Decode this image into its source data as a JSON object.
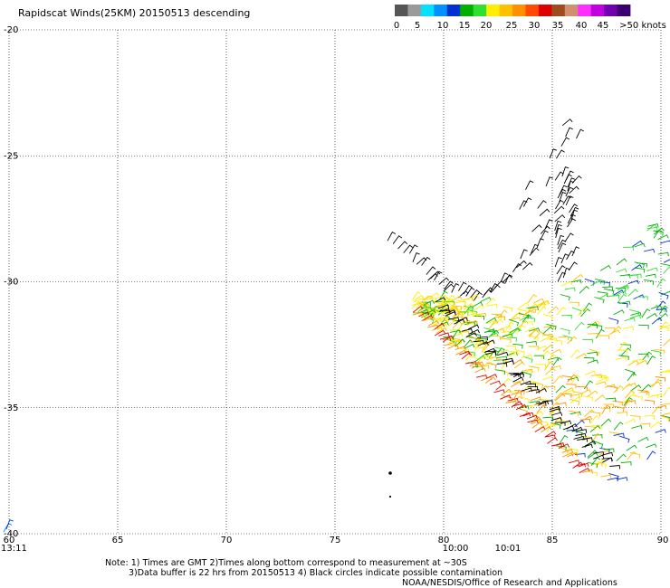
{
  "title": "Rapidscat Winds(25KM) 20150513 descending",
  "legend": {
    "colors": [
      "#555555",
      "#9a9a9a",
      "#00e0ff",
      "#0090ff",
      "#0030d0",
      "#00b000",
      "#30e030",
      "#ffee00",
      "#ffc000",
      "#ff9000",
      "#ff4a00",
      "#e00000",
      "#a04a20",
      "#d09070",
      "#ff30ff",
      "#c000e0",
      "#7000b0",
      "#3a0070"
    ],
    "labels": [
      "0",
      "5",
      "10",
      "15",
      "20",
      "25",
      "30",
      "35",
      "40",
      "45",
      ">50 knots"
    ]
  },
  "map": {
    "lon_ticks": [
      "65",
      "70",
      "75",
      "80",
      "85"
    ],
    "lon_edge_labels": [
      "60",
      "90"
    ],
    "lat_ticks": [
      "-20",
      "-25",
      "-30",
      "-35",
      "-40"
    ],
    "lon_range": [
      60,
      90
    ],
    "lat_range": [
      -40,
      -20
    ],
    "times": [
      "13:11",
      "10:00",
      "10:01"
    ],
    "time_color": "#800080"
  },
  "notes": {
    "line1": "Note: 1) Times are GMT 2)Times along bottom correspond to measurement at ~30S",
    "line2": "3)Data buffer is 22 hrs from 20150513 4) Black circles indicate possible contamination",
    "credit": "NOAA/NESDIS/Office of Research and Applications"
  }
}
